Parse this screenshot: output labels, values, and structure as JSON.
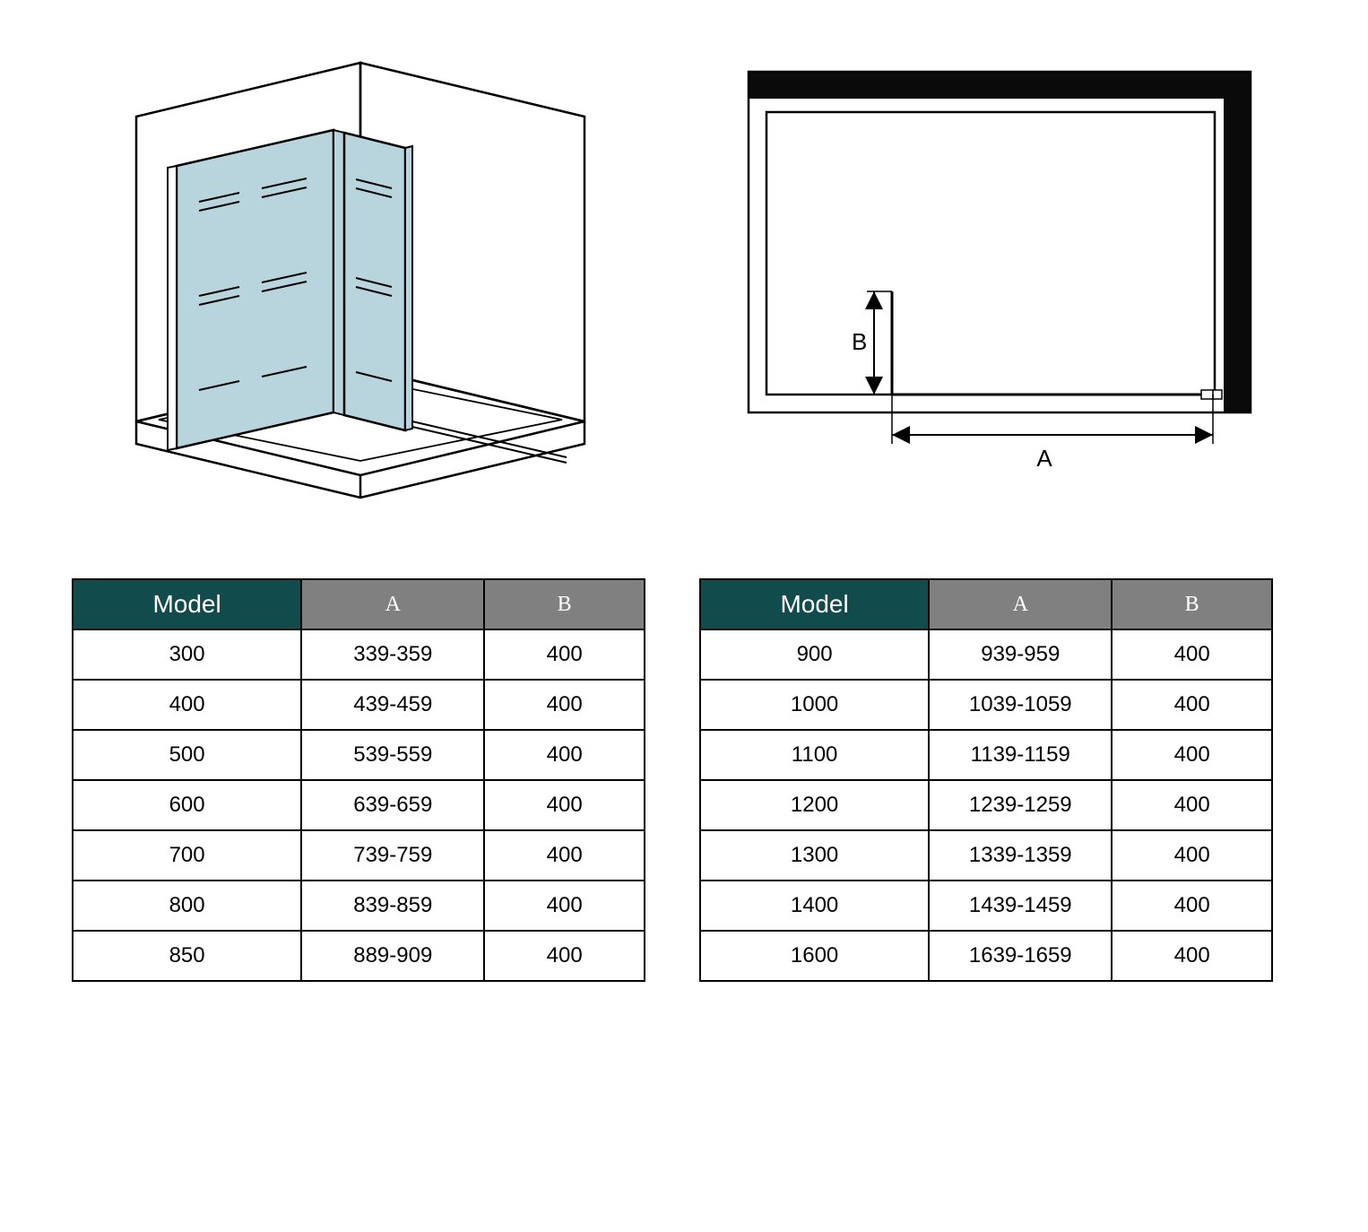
{
  "diagrams": {
    "iso": {
      "glass_fill": "#b8d4dc",
      "stroke": "#000000",
      "stroke_width": 2
    },
    "plan": {
      "frame_fill": "#0a0a0a",
      "stroke": "#000000",
      "label_A": "A",
      "label_B": "B",
      "label_fontsize": 22
    }
  },
  "tables": {
    "left": {
      "headers": {
        "model": "Model",
        "a": "A",
        "b": "B"
      },
      "header_colors": {
        "model_bg": "#124b4c",
        "dim_bg": "#808080",
        "fg": "#ffffff"
      },
      "rows": [
        [
          "300",
          "339-359",
          "400"
        ],
        [
          "400",
          "439-459",
          "400"
        ],
        [
          "500",
          "539-559",
          "400"
        ],
        [
          "600",
          "639-659",
          "400"
        ],
        [
          "700",
          "739-759",
          "400"
        ],
        [
          "800",
          "839-859",
          "400"
        ],
        [
          "850",
          "889-909",
          "400"
        ]
      ]
    },
    "right": {
      "headers": {
        "model": "Model",
        "a": "A",
        "b": "B"
      },
      "header_colors": {
        "model_bg": "#124b4c",
        "dim_bg": "#808080",
        "fg": "#ffffff"
      },
      "rows": [
        [
          "900",
          "939-959",
          "400"
        ],
        [
          "1000",
          "1039-1059",
          "400"
        ],
        [
          "1100",
          "1139-1159",
          "400"
        ],
        [
          "1200",
          "1239-1259",
          "400"
        ],
        [
          "1300",
          "1339-1359",
          "400"
        ],
        [
          "1400",
          "1439-1459",
          "400"
        ],
        [
          "1600",
          "1639-1659",
          "400"
        ]
      ]
    }
  }
}
